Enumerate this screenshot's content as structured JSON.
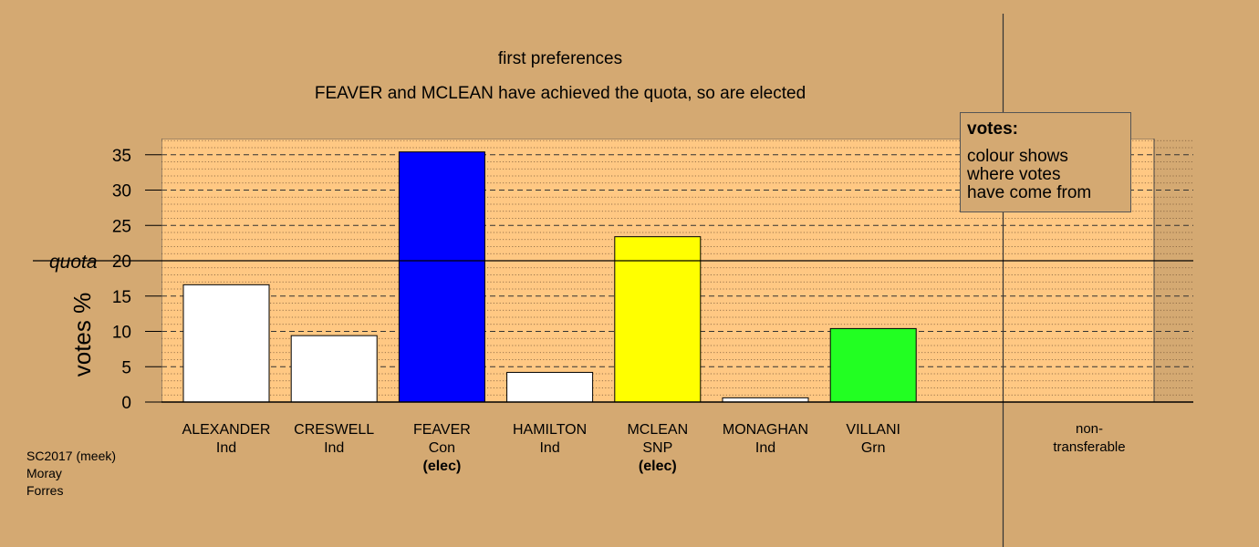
{
  "title": "first preferences",
  "subtitle": "FEAVER and MCLEAN have achieved the quota, so are elected",
  "quota_label": "quota",
  "elected_label": "(elec)",
  "legend": {
    "title": "votes:",
    "lines": [
      "colour shows",
      "where votes",
      "have come from"
    ]
  },
  "footer": [
    "SC2017 (meek)",
    "Moray",
    "Forres"
  ],
  "colors": {
    "background": "#D4A972",
    "plot_background": "#FFC883",
    "Ind": "#FFFFFF",
    "Con": "#0000FF",
    "SNP": "#FFFF00",
    "Grn": "#22FF22"
  },
  "chart_data": {
    "type": "bar",
    "ylabel": "votes %",
    "ylim": [
      0,
      37
    ],
    "yticks": [
      0,
      5,
      10,
      15,
      20,
      25,
      30,
      35
    ],
    "quota": 20,
    "grid": true,
    "legend_position": "top-right",
    "categories": [
      {
        "name": "ALEXANDER",
        "party": "Ind",
        "value": 16.6,
        "elected": false
      },
      {
        "name": "CRESWELL",
        "party": "Ind",
        "value": 9.4,
        "elected": false
      },
      {
        "name": "FEAVER",
        "party": "Con",
        "value": 35.4,
        "elected": true
      },
      {
        "name": "HAMILTON",
        "party": "Ind",
        "value": 4.2,
        "elected": false
      },
      {
        "name": "MCLEAN",
        "party": "SNP",
        "value": 23.4,
        "elected": true
      },
      {
        "name": "MONAGHAN",
        "party": "Ind",
        "value": 0.6,
        "elected": false
      },
      {
        "name": "VILLANI",
        "party": "Grn",
        "value": 10.4,
        "elected": false
      }
    ],
    "extra_category": {
      "label_line1": "non-",
      "label_line2": "transferable",
      "value": 0
    }
  }
}
